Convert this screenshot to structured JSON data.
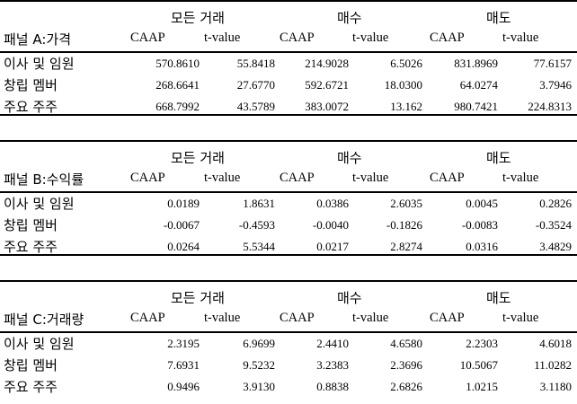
{
  "groups": [
    "모든 거래",
    "매수",
    "매도"
  ],
  "columns": [
    "CAAP",
    "t-value",
    "CAAP",
    "t-value",
    "CAAP",
    "t-value"
  ],
  "panels": [
    {
      "title": "패널 A:가격",
      "rows": [
        {
          "label": "이사 및 임원",
          "values": [
            "570.8610",
            "55.8418",
            "214.9028",
            "6.5026",
            "831.8969",
            "77.6157"
          ]
        },
        {
          "label": "창립 멤버",
          "values": [
            "268.6641",
            "27.6770",
            "592.6721",
            "18.0300",
            "64.0274",
            "3.7946"
          ]
        },
        {
          "label": "주요 주주",
          "values": [
            "668.7992",
            "43.5789",
            "383.0072",
            "13.162",
            "980.7421",
            "224.8313"
          ]
        }
      ]
    },
    {
      "title": "패널 B:수익률",
      "rows": [
        {
          "label": "이사 및 임원",
          "values": [
            "0.0189",
            "1.8631",
            "0.0386",
            "2.6035",
            "0.0045",
            "0.2826"
          ]
        },
        {
          "label": "창립 멤버",
          "values": [
            "-0.0067",
            "-0.4593",
            "-0.0040",
            "-0.1826",
            "-0.0083",
            "-0.3524"
          ]
        },
        {
          "label": "주요 주주",
          "values": [
            "0.0264",
            "5.5344",
            "0.0217",
            "2.8274",
            "0.0316",
            "3.4829"
          ]
        }
      ]
    },
    {
      "title": "패널 C:거래량",
      "rows": [
        {
          "label": "이사 및 임원",
          "values": [
            "2.3195",
            "6.9699",
            "2.4410",
            "4.6580",
            "2.2303",
            "4.6018"
          ]
        },
        {
          "label": "창립 멤버",
          "values": [
            "7.6931",
            "9.5232",
            "3.2383",
            "2.3696",
            "10.5067",
            "11.0282"
          ]
        },
        {
          "label": "주요 주주",
          "values": [
            "0.9496",
            "3.9130",
            "0.8838",
            "2.6826",
            "1.0215",
            "3.1180"
          ]
        }
      ]
    }
  ]
}
